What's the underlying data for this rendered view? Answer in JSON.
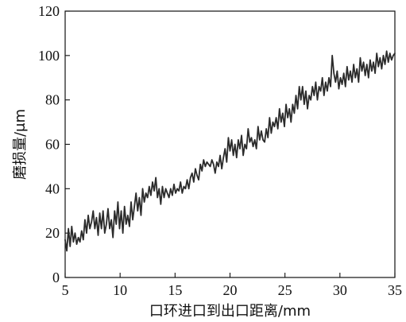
{
  "chart_data": {
    "type": "line",
    "title": "",
    "xlabel": "口环进口到出口距离/mm",
    "ylabel": "磨损量/μm",
    "xlim": [
      5,
      35
    ],
    "ylim": [
      0,
      120
    ],
    "xticks": [
      5,
      10,
      15,
      20,
      25,
      30,
      35
    ],
    "yticks": [
      0,
      20,
      40,
      60,
      80,
      100,
      120
    ],
    "xtick_labels": [
      "5",
      "10",
      "15",
      "20",
      "25",
      "30",
      "35"
    ],
    "ytick_labels": [
      "0",
      "20",
      "40",
      "60",
      "80",
      "100",
      "120"
    ],
    "grid": false,
    "legend": "none",
    "line_color": "#2b2b2b",
    "series": [
      {
        "x": [
          5.0,
          5.15,
          5.3,
          5.45,
          5.6,
          5.75,
          5.9,
          6.05,
          6.2,
          6.35,
          6.5,
          6.65,
          6.8,
          6.95,
          7.1,
          7.25,
          7.4,
          7.55,
          7.7,
          7.85,
          8.0,
          8.15,
          8.3,
          8.45,
          8.6,
          8.75,
          8.9,
          9.05,
          9.2,
          9.35,
          9.5,
          9.65,
          9.8,
          9.95,
          10.1,
          10.25,
          10.4,
          10.55,
          10.7,
          10.85,
          11.0,
          11.15,
          11.3,
          11.45,
          11.6,
          11.75,
          11.9,
          12.05,
          12.2,
          12.35,
          12.5,
          12.65,
          12.8,
          12.95,
          13.1,
          13.25,
          13.4,
          13.55,
          13.7,
          13.85,
          14.0,
          14.15,
          14.3,
          14.45,
          14.6,
          14.75,
          14.9,
          15.05,
          15.2,
          15.35,
          15.5,
          15.65,
          15.8,
          15.95,
          16.1,
          16.25,
          16.4,
          16.55,
          16.7,
          16.85,
          17.0,
          17.15,
          17.3,
          17.45,
          17.6,
          17.75,
          17.9,
          18.05,
          18.2,
          18.35,
          18.5,
          18.65,
          18.8,
          18.95,
          19.1,
          19.25,
          19.4,
          19.55,
          19.7,
          19.85,
          20.0,
          20.15,
          20.3,
          20.45,
          20.6,
          20.75,
          20.9,
          21.05,
          21.2,
          21.35,
          21.5,
          21.65,
          21.8,
          21.95,
          22.1,
          22.25,
          22.4,
          22.55,
          22.7,
          22.85,
          23.0,
          23.15,
          23.3,
          23.45,
          23.6,
          23.75,
          23.9,
          24.05,
          24.2,
          24.35,
          24.5,
          24.65,
          24.8,
          24.95,
          25.1,
          25.25,
          25.4,
          25.55,
          25.7,
          25.85,
          26.0,
          26.15,
          26.3,
          26.45,
          26.6,
          26.75,
          26.9,
          27.05,
          27.2,
          27.35,
          27.5,
          27.65,
          27.8,
          27.95,
          28.1,
          28.25,
          28.4,
          28.55,
          28.7,
          28.85,
          29.0,
          29.15,
          29.3,
          29.45,
          29.6,
          29.75,
          29.9,
          30.05,
          30.2,
          30.35,
          30.5,
          30.65,
          30.8,
          30.95,
          31.1,
          31.25,
          31.4,
          31.55,
          31.7,
          31.85,
          32.0,
          32.15,
          32.3,
          32.45,
          32.6,
          32.75,
          32.9,
          33.05,
          33.2,
          33.35,
          33.5,
          33.65,
          33.8,
          33.95,
          34.1,
          34.25,
          34.4,
          34.55,
          34.7,
          34.85,
          35.0
        ],
        "y": [
          17,
          12,
          22,
          14,
          23,
          16,
          20,
          15,
          18,
          16,
          21,
          17,
          26,
          20,
          28,
          22,
          25,
          30,
          22,
          27,
          19,
          29,
          22,
          30,
          20,
          24,
          31,
          22,
          26,
          18,
          30,
          24,
          34,
          22,
          30,
          20,
          32,
          24,
          28,
          23,
          34,
          26,
          32,
          38,
          30,
          36,
          28,
          40,
          34,
          38,
          36,
          41,
          37,
          43,
          39,
          45,
          36,
          40,
          33,
          41,
          36,
          40,
          38,
          36,
          40,
          37,
          42,
          38,
          40,
          39,
          43,
          38,
          41,
          40,
          44,
          40,
          45,
          47,
          43,
          49,
          46,
          44,
          51,
          48,
          53,
          50,
          52,
          51,
          50,
          53,
          51,
          47,
          52,
          50,
          55,
          49,
          54,
          58,
          52,
          63,
          57,
          62,
          55,
          60,
          54,
          62,
          58,
          64,
          55,
          60,
          58,
          67,
          61,
          63,
          59,
          62,
          58,
          68,
          62,
          66,
          62,
          61,
          67,
          63,
          72,
          65,
          70,
          68,
          72,
          67,
          76,
          70,
          74,
          68,
          78,
          72,
          76,
          70,
          78,
          74,
          82,
          76,
          86,
          80,
          86,
          78,
          84,
          76,
          82,
          80,
          86,
          82,
          88,
          80,
          86,
          84,
          90,
          82,
          88,
          84,
          90,
          86,
          100,
          92,
          88,
          93,
          85,
          90,
          87,
          92,
          86,
          95,
          89,
          93,
          88,
          96,
          90,
          94,
          88,
          99,
          93,
          97,
          91,
          96,
          90,
          98,
          93,
          97,
          92,
          101,
          95,
          99,
          94,
          100,
          96,
          102,
          97,
          101,
          98,
          100,
          101
        ]
      }
    ]
  }
}
